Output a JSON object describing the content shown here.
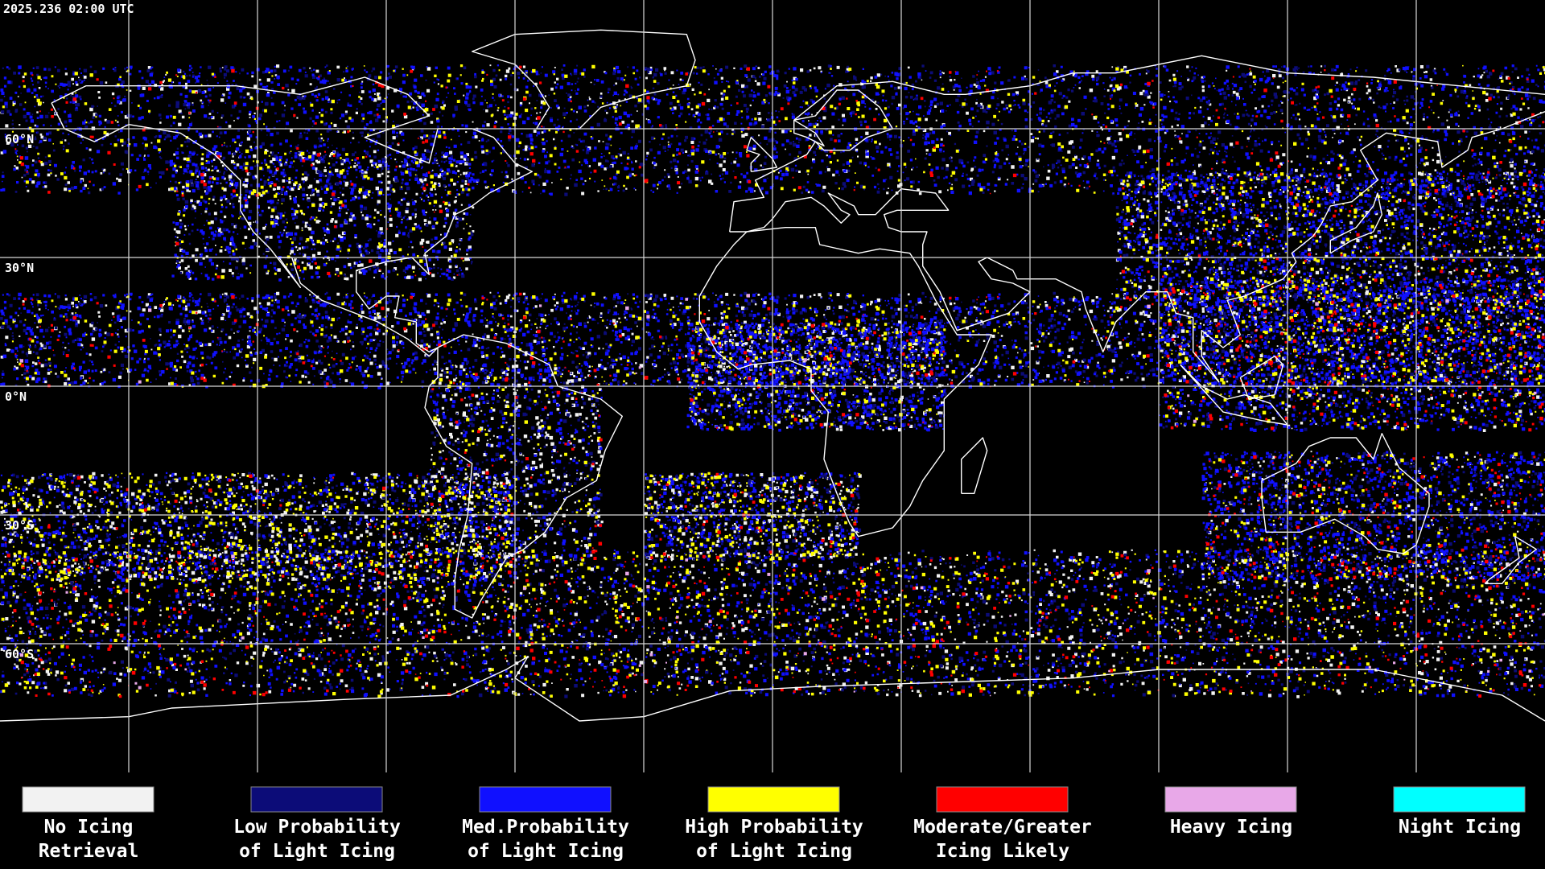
{
  "timestamp": "2025.236 02:00 UTC",
  "latitude_labels": [
    "60°N",
    "30°N",
    "0°N",
    "30°S",
    "60°S"
  ],
  "legend": [
    {
      "label_lines": [
        "No Icing",
        "Retrieval"
      ],
      "color": "#f2f2f2"
    },
    {
      "label_lines": [
        "Low Probability",
        "of Light Icing"
      ],
      "color": "#0c0c78"
    },
    {
      "label_lines": [
        "Med.Probability",
        "of Light Icing"
      ],
      "color": "#1010ff"
    },
    {
      "label_lines": [
        "High Probability",
        "of Light Icing"
      ],
      "color": "#ffff00"
    },
    {
      "label_lines": [
        "Moderate/Greater",
        "Icing Likely"
      ],
      "color": "#ff0000"
    },
    {
      "label_lines": [
        "Heavy Icing"
      ],
      "color": "#e8a8e8"
    },
    {
      "label_lines": [
        "Night Icing"
      ],
      "color": "#00ffff"
    }
  ]
}
